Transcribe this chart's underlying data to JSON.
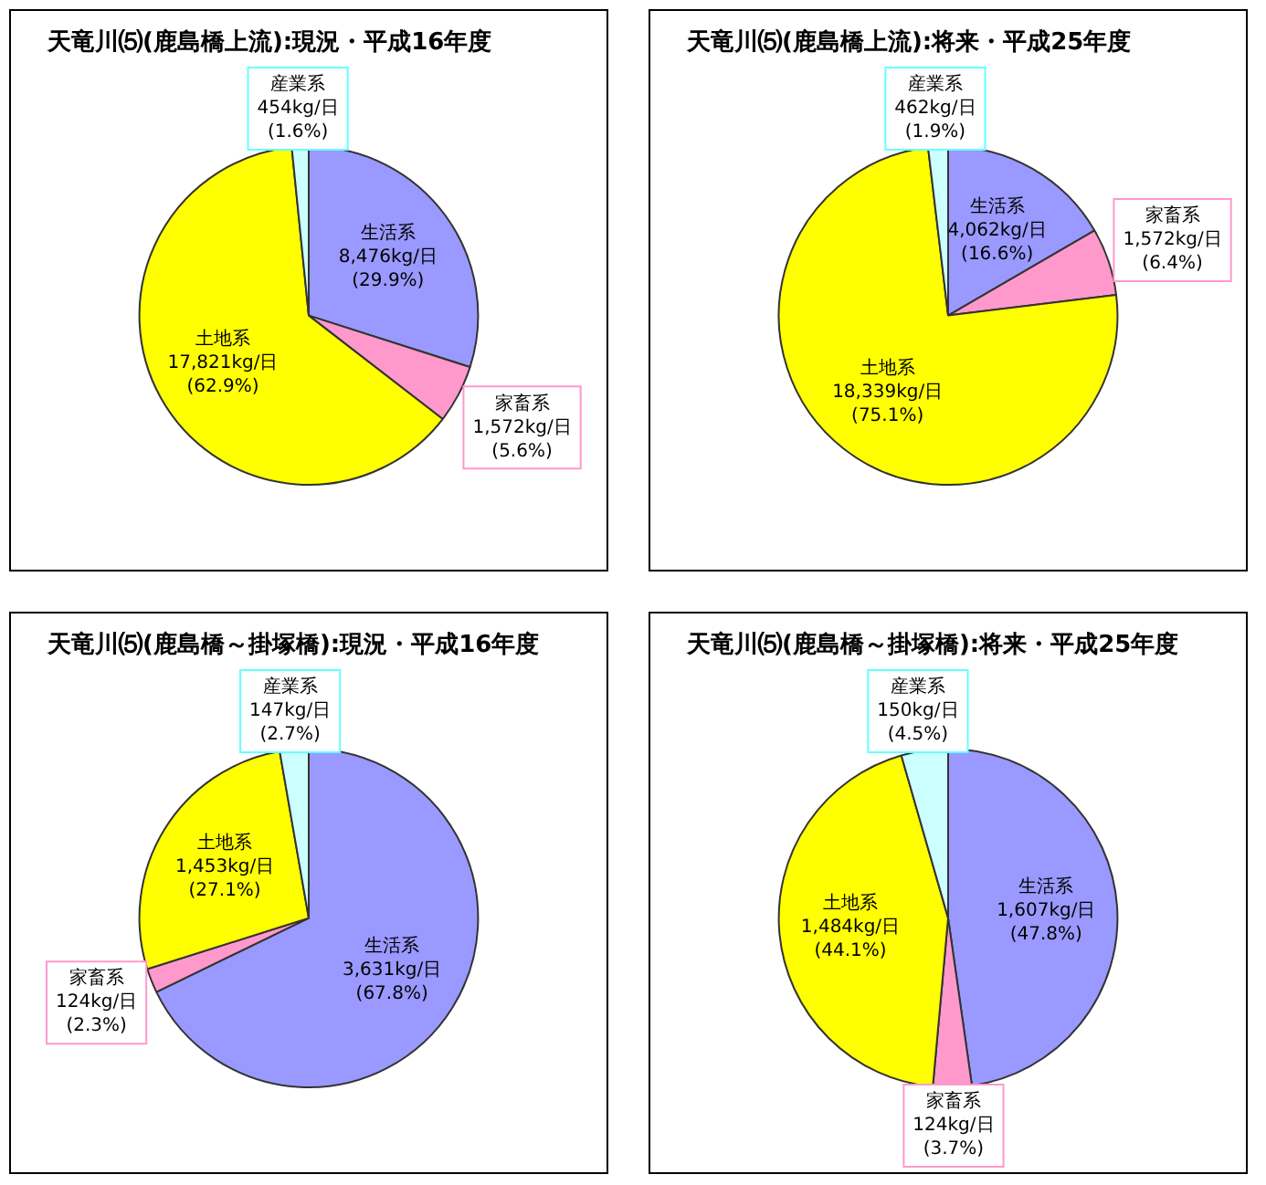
{
  "chart_data": [
    {
      "type": "pie",
      "title": "天竜川⑸(鹿島橋上流):現況・平成16年度",
      "categories": [
        "生活系",
        "家畜系",
        "土地系",
        "産業系"
      ],
      "values": [
        8476,
        1572,
        17821,
        454
      ],
      "colors": [
        "#9999ff",
        "#ff99cc",
        "#ffff00",
        "#ccffff"
      ],
      "value_labels": [
        "8,476kg/日\n(29.9%)",
        "1,572kg/日\n(5.6%)",
        "17,821kg/日\n(62.9%)",
        "454kg/日\n(1.6%)"
      ],
      "legend": false
    },
    {
      "type": "pie",
      "title": "天竜川⑸(鹿島橋上流):将来・平成25年度",
      "categories": [
        "生活系",
        "家畜系",
        "土地系",
        "産業系"
      ],
      "values": [
        4062,
        1572,
        18339,
        462
      ],
      "colors": [
        "#9999ff",
        "#ff99cc",
        "#ffff00",
        "#ccffff"
      ],
      "value_labels": [
        "4,062kg/日\n(16.6%)",
        "1,572kg/日\n(6.4%)",
        "18,339kg/日\n(75.1%)",
        "462kg/日\n(1.9%)"
      ],
      "legend": false
    },
    {
      "type": "pie",
      "title": "天竜川⑸(鹿島橋～掛塚橋):現況・平成16年度",
      "categories": [
        "生活系",
        "家畜系",
        "土地系",
        "産業系"
      ],
      "values": [
        3631,
        124,
        1453,
        147
      ],
      "colors": [
        "#9999ff",
        "#ff99cc",
        "#ffff00",
        "#ccffff"
      ],
      "value_labels": [
        "3,631kg/日\n(67.8%)",
        "124kg/日\n(2.3%)",
        "1,453kg/日\n(27.1%)",
        "147kg/日\n(2.7%)"
      ],
      "legend": false
    },
    {
      "type": "pie",
      "title": "天竜川⑸(鹿島橋～掛塚橋):将来・平成25年度",
      "categories": [
        "生活系",
        "家畜系",
        "土地系",
        "産業系"
      ],
      "values": [
        1607,
        124,
        1484,
        150
      ],
      "colors": [
        "#9999ff",
        "#ff99cc",
        "#ffff00",
        "#ccffff"
      ],
      "value_labels": [
        "1,607kg/日\n(47.8%)",
        "124kg/日\n(3.7%)",
        "1,484kg/日\n(44.1%)",
        "150kg/日\n(4.5%)"
      ],
      "legend": false
    }
  ]
}
